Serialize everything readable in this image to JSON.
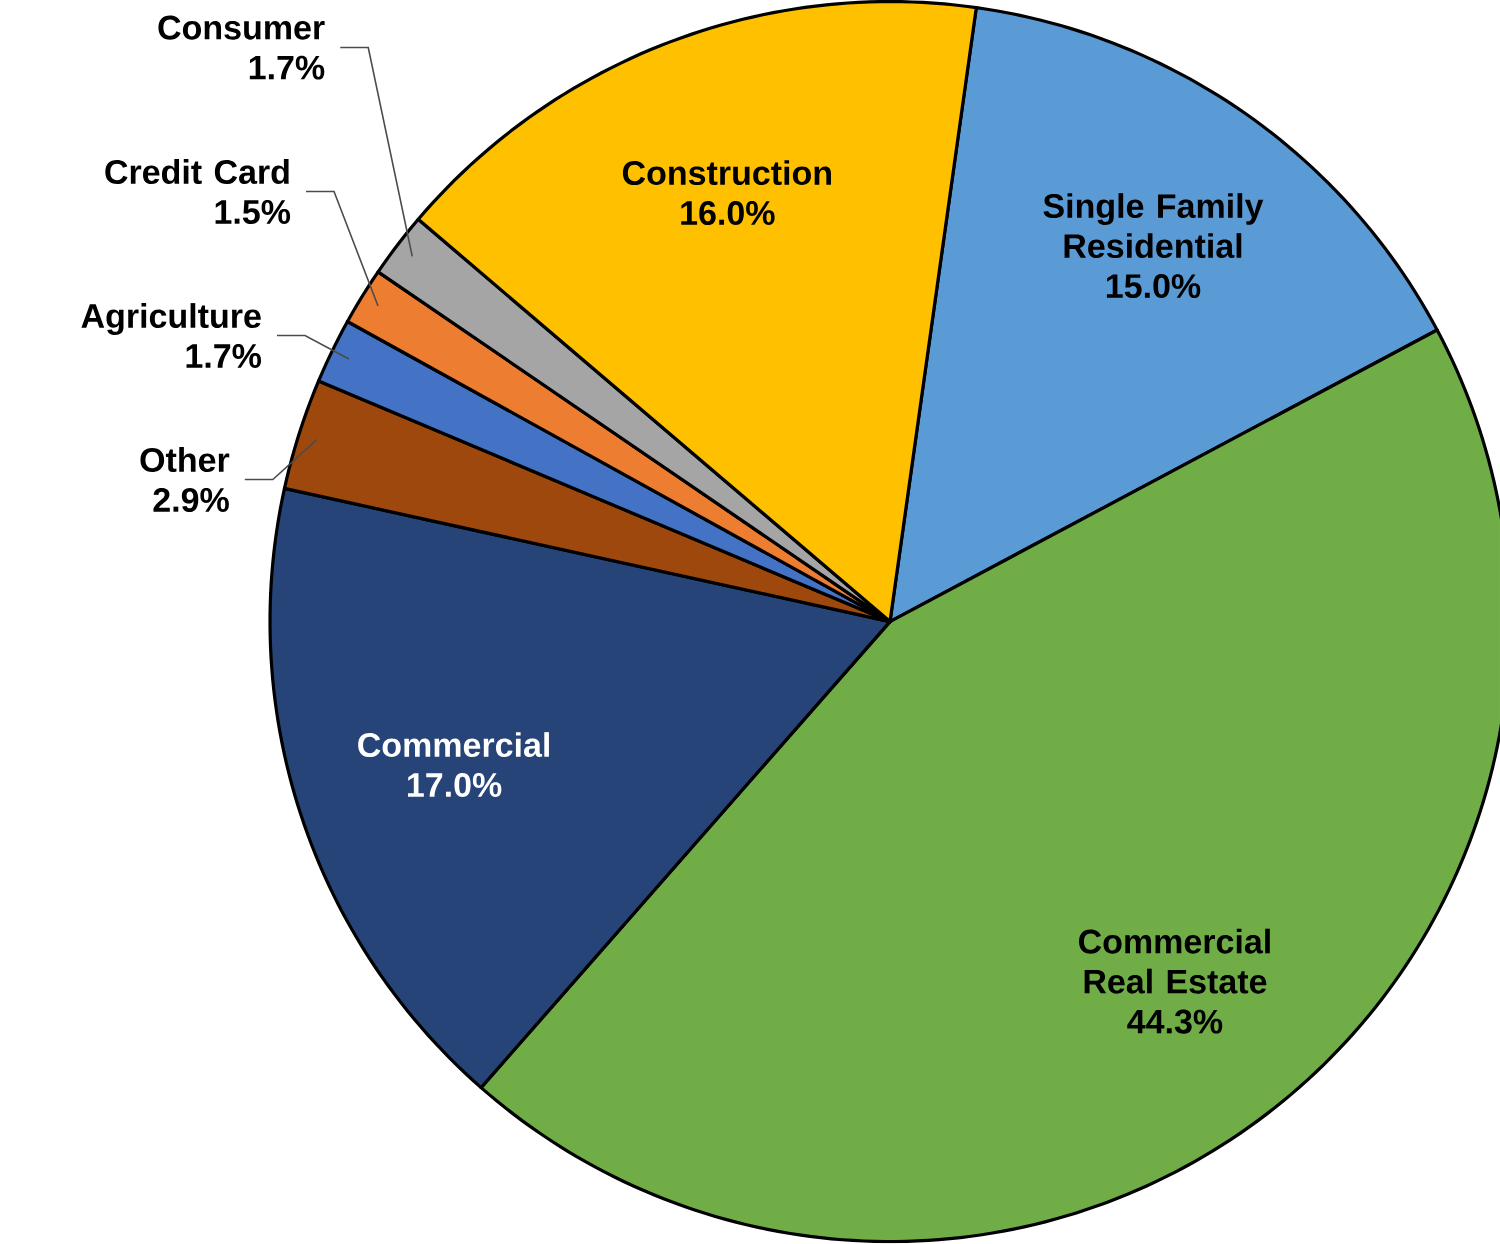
{
  "chart_data": {
    "type": "pie",
    "categories": [
      "Single Family Residential",
      "Commercial Real Estate",
      "Commercial",
      "Other",
      "Agriculture",
      "Credit Card",
      "Consumer",
      "Construction"
    ],
    "values": [
      15.0,
      44.3,
      17.0,
      2.9,
      1.7,
      1.5,
      1.7,
      16.0
    ],
    "value_labels": [
      "15.0%",
      "44.3%",
      "17.0%",
      "2.9%",
      "1.7%",
      "1.5%",
      "1.7%",
      "16.0%"
    ],
    "colors": [
      "#5b9bd5",
      "#70ad47",
      "#264478",
      "#9e480e",
      "#4472c4",
      "#ed7d31",
      "#a5a5a5",
      "#ffc000"
    ]
  }
}
